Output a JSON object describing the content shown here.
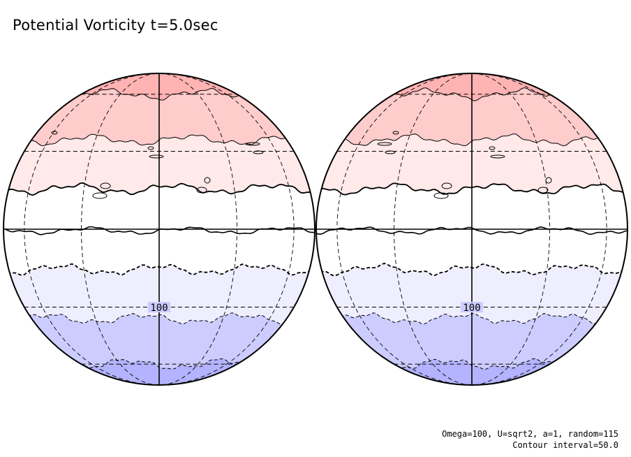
{
  "title": "Potential Vorticity t=5.0sec",
  "globes": [
    {
      "name": "left-globe",
      "label": "100"
    },
    {
      "name": "right-globe",
      "label": "100"
    }
  ],
  "bands": [
    {
      "from": 90,
      "to": 60,
      "color": "#ffb3b3"
    },
    {
      "from": 60,
      "to": 35,
      "color": "#ffcccc"
    },
    {
      "from": 35,
      "to": 15,
      "color": "#ffe9e9"
    },
    {
      "from": 15,
      "to": -15,
      "color": "#ffffff"
    },
    {
      "from": -15,
      "to": -35,
      "color": "#eeeeff"
    },
    {
      "from": -35,
      "to": -60,
      "color": "#ccccff"
    },
    {
      "from": -60,
      "to": -90,
      "color": "#b3b3ff"
    }
  ],
  "footer": {
    "params": "Omega=100, U=sqrt2, a=1, random=115",
    "interval": "Contour interval=50.0"
  }
}
